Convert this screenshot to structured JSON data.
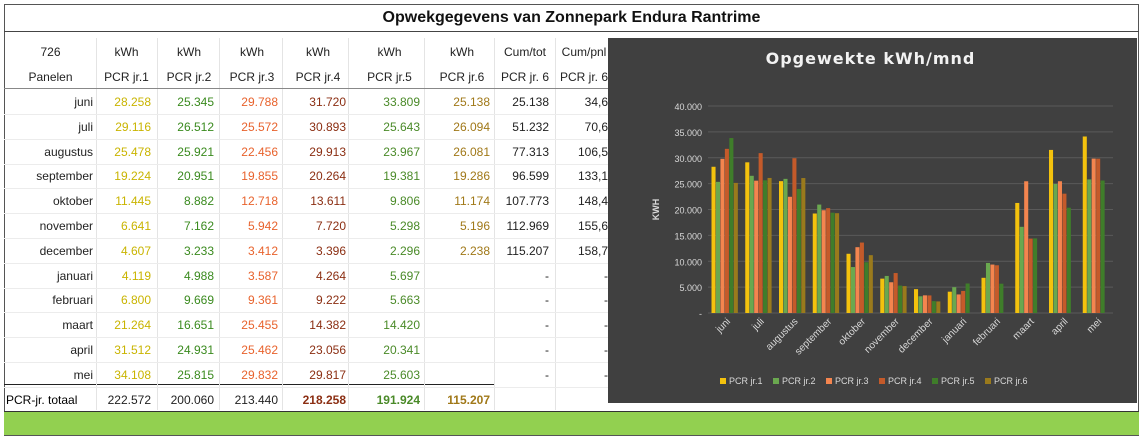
{
  "title": "Opwekgegevens van Zonnepark Endura Rantrime",
  "header_row1": [
    "726",
    "kWh",
    "kWh",
    "kWh",
    "kWh",
    "kWh",
    "kWh",
    "Cum/tot",
    "Cum/pnl"
  ],
  "header_row2": [
    "Panelen",
    "PCR jr.1",
    "PCR jr.2",
    "PCR jr.3",
    "PCR jr.4",
    "PCR jr.5",
    "PCR jr.6",
    "PCR jr. 6",
    "PCR jr. 6"
  ],
  "rows": [
    {
      "month": "juni",
      "v": [
        "28.258",
        "25.345",
        "29.788",
        "31.720",
        "33.809",
        "25.138"
      ],
      "cum": "25.138",
      "pnl": "34,6"
    },
    {
      "month": "juli",
      "v": [
        "29.116",
        "26.512",
        "25.572",
        "30.893",
        "25.643",
        "26.094"
      ],
      "cum": "51.232",
      "pnl": "70,6"
    },
    {
      "month": "augustus",
      "v": [
        "25.478",
        "25.921",
        "22.456",
        "29.913",
        "23.967",
        "26.081"
      ],
      "cum": "77.313",
      "pnl": "106,5"
    },
    {
      "month": "september",
      "v": [
        "19.224",
        "20.951",
        "19.855",
        "20.264",
        "19.381",
        "19.286"
      ],
      "cum": "96.599",
      "pnl": "133,1"
    },
    {
      "month": "oktober",
      "v": [
        "11.445",
        "8.882",
        "12.718",
        "13.611",
        "9.806",
        "11.174"
      ],
      "cum": "107.773",
      "pnl": "148,4"
    },
    {
      "month": "november",
      "v": [
        "6.641",
        "7.162",
        "5.942",
        "7.720",
        "5.298",
        "5.196"
      ],
      "cum": "112.969",
      "pnl": "155,6"
    },
    {
      "month": "december",
      "v": [
        "4.607",
        "3.233",
        "3.412",
        "3.396",
        "2.296",
        "2.238"
      ],
      "cum": "115.207",
      "pnl": "158,7"
    },
    {
      "month": "januari",
      "v": [
        "4.119",
        "4.988",
        "3.587",
        "4.264",
        "5.697",
        ""
      ],
      "cum": "-",
      "pnl": "-"
    },
    {
      "month": "februari",
      "v": [
        "6.800",
        "9.669",
        "9.361",
        "9.222",
        "5.663",
        ""
      ],
      "cum": "-",
      "pnl": "-"
    },
    {
      "month": "maart",
      "v": [
        "21.264",
        "16.651",
        "25.455",
        "14.382",
        "14.420",
        ""
      ],
      "cum": "-",
      "pnl": "-"
    },
    {
      "month": "april",
      "v": [
        "31.512",
        "24.931",
        "25.462",
        "23.056",
        "20.341",
        ""
      ],
      "cum": "-",
      "pnl": "-"
    },
    {
      "month": "mei",
      "v": [
        "34.108",
        "25.815",
        "29.832",
        "29.817",
        "25.603",
        ""
      ],
      "cum": "-",
      "pnl": "-"
    }
  ],
  "totals": {
    "label": "PCR-jr. totaal",
    "v": [
      "222.572",
      "200.060",
      "213.440",
      "218.258",
      "191.924",
      "115.207"
    ]
  },
  "column_colors": [
    "#c9b400",
    "#3a8a1e",
    "#e8622c",
    "#8b2e12",
    "#4a8a28",
    "#a07818"
  ],
  "chart_data": {
    "type": "bar",
    "title": "Opgewekte kWh/mnd",
    "xlabel": "",
    "ylabel": "KWH",
    "ylim": [
      0,
      40000
    ],
    "yticks": [
      "-",
      "5.000",
      "10.000",
      "15.000",
      "20.000",
      "25.000",
      "30.000",
      "35.000",
      "40.000"
    ],
    "grid": true,
    "legend_position": "bottom",
    "categories": [
      "juni",
      "juli",
      "augustus",
      "september",
      "oktober",
      "november",
      "december",
      "januari",
      "februari",
      "maart",
      "april",
      "mei"
    ],
    "series": [
      {
        "name": "PCR jr.1",
        "color": "#f4c20d",
        "values": [
          28258,
          29116,
          25478,
          19224,
          11445,
          6641,
          4607,
          4119,
          6800,
          21264,
          31512,
          34108
        ]
      },
      {
        "name": "PCR jr.2",
        "color": "#6aa84f",
        "values": [
          25345,
          26512,
          25921,
          20951,
          8882,
          7162,
          3233,
          4988,
          9669,
          16651,
          24931,
          25815
        ]
      },
      {
        "name": "PCR jr.3",
        "color": "#f4854f",
        "values": [
          29788,
          25572,
          22456,
          19855,
          12718,
          5942,
          3412,
          3587,
          9361,
          25455,
          25462,
          29832
        ]
      },
      {
        "name": "PCR jr.4",
        "color": "#c45a2a",
        "values": [
          31720,
          30893,
          29913,
          20264,
          13611,
          7720,
          3396,
          4264,
          9222,
          14382,
          23056,
          29817
        ]
      },
      {
        "name": "PCR jr.5",
        "color": "#3f7d2a",
        "values": [
          33809,
          25643,
          23967,
          19381,
          9806,
          5298,
          2296,
          5697,
          5663,
          14420,
          20341,
          25603
        ]
      },
      {
        "name": "PCR jr.6",
        "color": "#9a7a1c",
        "values": [
          25138,
          26094,
          26081,
          19286,
          11174,
          5196,
          2238,
          null,
          null,
          null,
          null,
          null
        ]
      }
    ]
  }
}
